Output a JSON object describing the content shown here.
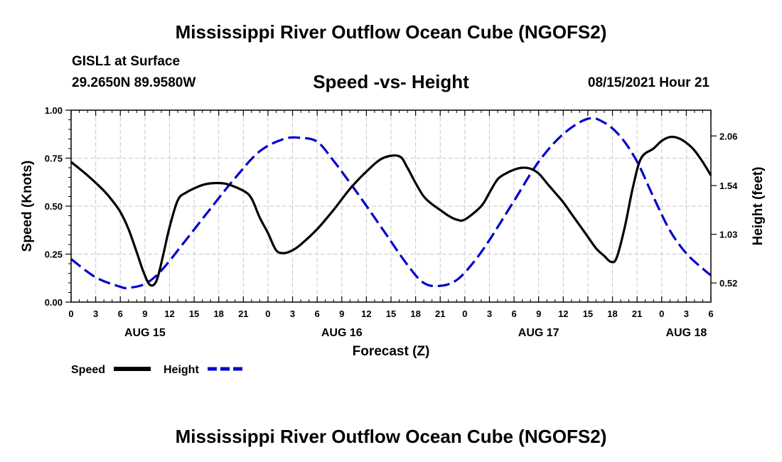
{
  "header": {
    "title": "Mississippi River Outflow Ocean Cube (NGOFS2)",
    "station": "GISL1 at Surface",
    "coordinates": "29.2650N  89.9580W",
    "subtitle": "Speed -vs- Height",
    "datetime": "08/15/2021 Hour 21"
  },
  "footer": {
    "title": "Mississippi River Outflow Ocean Cube (NGOFS2)"
  },
  "chart_data": {
    "type": "line",
    "xlabel": "Forecast (Z)",
    "ylabel_left": "Speed (Knots)",
    "ylabel_right": "Height (feet)",
    "x_range_hours": [
      0,
      78
    ],
    "y_left_range": [
      0,
      1
    ],
    "y_right_range": [
      0.32,
      2.33
    ],
    "x_tick_labels": [
      "0",
      "3",
      "6",
      "9",
      "12",
      "15",
      "18",
      "21",
      "0",
      "3",
      "6",
      "9",
      "12",
      "15",
      "18",
      "21",
      "0",
      "3",
      "6",
      "9",
      "12",
      "15",
      "18",
      "21",
      "0",
      "3",
      "6"
    ],
    "y_left_ticks": [
      "0.00",
      "0.25",
      "0.50",
      "0.75",
      "1.00"
    ],
    "y_left_tick_values": [
      0,
      0.25,
      0.5,
      0.75,
      1.0
    ],
    "y_right_ticks": [
      "0.52",
      "1.03",
      "1.54",
      "2.06"
    ],
    "y_right_tick_values": [
      0.52,
      1.03,
      1.54,
      2.06
    ],
    "date_labels": [
      {
        "label": "AUG 15",
        "hour": 9
      },
      {
        "label": "AUG 16",
        "hour": 33
      },
      {
        "label": "AUG 17",
        "hour": 57
      },
      {
        "label": "AUG 18",
        "hour": 75
      }
    ],
    "grid": true,
    "legend_position": "bottom-left",
    "series": [
      {
        "name": "Speed",
        "axis": "left",
        "color": "#000000",
        "dash": "solid",
        "x": [
          0,
          2,
          4,
          5,
          6,
          7,
          8,
          8.8,
          9.6,
          10.4,
          11.2,
          12,
          13,
          14,
          16,
          17.5,
          19,
          21,
          22,
          23,
          24,
          25,
          26,
          27,
          28,
          30,
          32,
          34,
          36,
          38,
          40,
          41,
          42,
          43,
          44,
          45,
          46,
          47,
          48,
          50,
          51,
          52,
          53,
          54,
          55,
          56,
          57,
          58,
          59,
          60,
          61,
          62,
          63,
          64,
          65,
          65.8,
          66.5,
          67.5,
          68.5,
          69.5,
          71,
          72,
          73,
          74,
          75,
          76,
          77,
          78
        ],
        "values": [
          0.73,
          0.66,
          0.58,
          0.53,
          0.47,
          0.38,
          0.26,
          0.16,
          0.09,
          0.11,
          0.24,
          0.39,
          0.53,
          0.57,
          0.61,
          0.62,
          0.615,
          0.58,
          0.54,
          0.44,
          0.36,
          0.27,
          0.255,
          0.27,
          0.3,
          0.38,
          0.48,
          0.59,
          0.68,
          0.75,
          0.76,
          0.7,
          0.62,
          0.55,
          0.51,
          0.48,
          0.45,
          0.43,
          0.43,
          0.5,
          0.57,
          0.64,
          0.67,
          0.69,
          0.7,
          0.695,
          0.67,
          0.62,
          0.57,
          0.52,
          0.46,
          0.4,
          0.34,
          0.28,
          0.24,
          0.21,
          0.23,
          0.39,
          0.6,
          0.75,
          0.8,
          0.84,
          0.86,
          0.855,
          0.83,
          0.79,
          0.73,
          0.66
        ]
      },
      {
        "name": "Height",
        "axis": "right",
        "color": "#0000cc",
        "dash": "dashed",
        "x": [
          0,
          3,
          6,
          7,
          9,
          11,
          14,
          17,
          20,
          23,
          26,
          28,
          30,
          32,
          35,
          38,
          41,
          43,
          45,
          47,
          49,
          51,
          54,
          57,
          60,
          63,
          65,
          67,
          69,
          71,
          73,
          75,
          77,
          78
        ],
        "values": [
          0.77,
          0.58,
          0.48,
          0.47,
          0.51,
          0.65,
          0.97,
          1.3,
          1.62,
          1.9,
          2.03,
          2.04,
          2.0,
          1.8,
          1.45,
          1.08,
          0.71,
          0.52,
          0.49,
          0.55,
          0.73,
          0.97,
          1.38,
          1.79,
          2.08,
          2.24,
          2.2,
          2.05,
          1.79,
          1.42,
          1.07,
          0.83,
          0.67,
          0.6
        ]
      }
    ]
  }
}
